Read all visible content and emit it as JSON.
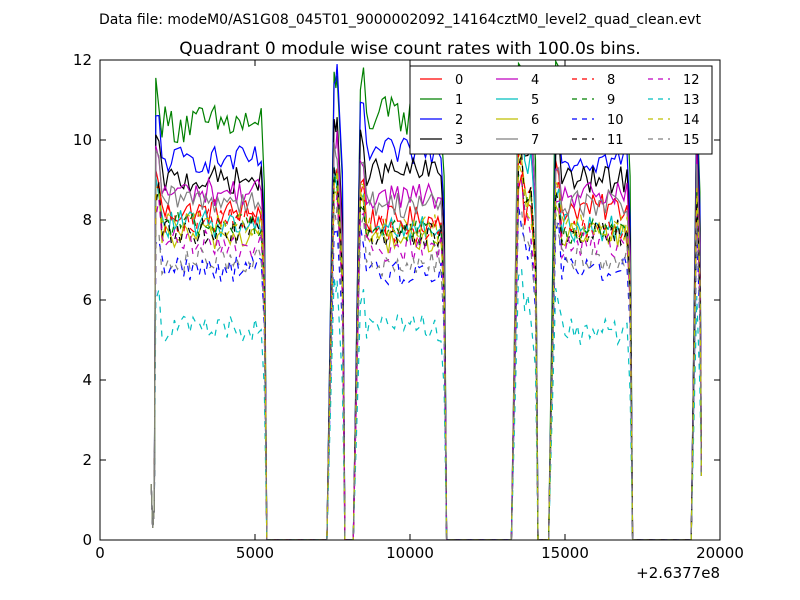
{
  "figure": {
    "suptitle": "Data file: modeM0/AS1G08_045T01_9000002092_14164cztM0_level2_quad_clean.evt"
  },
  "chart_data": {
    "type": "line",
    "title": "Quadrant 0 module wise count rates with 100.0s bins.",
    "xlabel": "",
    "ylabel": "",
    "x_offset_label": "+2.6377e8",
    "xlim": [
      0,
      20000
    ],
    "ylim": [
      0,
      12
    ],
    "x_ticks": [
      0,
      5000,
      10000,
      15000,
      20000
    ],
    "y_ticks": [
      0,
      2,
      4,
      6,
      8,
      10,
      12
    ],
    "grid": false,
    "legend_position": "top-right",
    "legend_columns": 4,
    "segments": [
      {
        "start": 1650,
        "end": 5300
      },
      {
        "start": 7400,
        "end": 7820
      },
      {
        "start": 8250,
        "end": 11100
      },
      {
        "start": 13350,
        "end": 14050
      },
      {
        "start": 14550,
        "end": 17100
      },
      {
        "start": 19150,
        "end": 19350
      }
    ],
    "series": [
      {
        "name": "0",
        "color": "#ff0000",
        "dash": "solid",
        "levels": [
          8.2,
          8.3,
          8.0,
          8.2,
          8.3,
          8.2
        ]
      },
      {
        "name": "1",
        "color": "#008000",
        "dash": "solid",
        "levels": [
          10.4,
          10.5,
          10.6,
          11.0,
          10.6,
          10.2
        ]
      },
      {
        "name": "2",
        "color": "#0000ff",
        "dash": "solid",
        "levels": [
          9.5,
          10.7,
          9.7,
          10.3,
          9.5,
          9.8
        ]
      },
      {
        "name": "3",
        "color": "#000000",
        "dash": "solid",
        "levels": [
          9.0,
          9.4,
          9.2,
          9.6,
          9.0,
          9.3
        ]
      },
      {
        "name": "4",
        "color": "#bf00bf",
        "dash": "solid",
        "levels": [
          8.7,
          9.0,
          8.6,
          9.8,
          8.6,
          8.9
        ]
      },
      {
        "name": "5",
        "color": "#00bfbf",
        "dash": "solid",
        "levels": [
          7.9,
          8.2,
          7.8,
          9.5,
          7.8,
          8.0
        ]
      },
      {
        "name": "6",
        "color": "#bfbf00",
        "dash": "solid",
        "levels": [
          7.6,
          7.9,
          7.5,
          8.5,
          7.6,
          7.8
        ]
      },
      {
        "name": "7",
        "color": "#808080",
        "dash": "solid",
        "levels": [
          8.5,
          8.8,
          8.4,
          10.3,
          8.4,
          8.6
        ]
      },
      {
        "name": "8",
        "color": "#ff0000",
        "dash": "dashed",
        "levels": [
          8.0,
          8.1,
          7.8,
          8.5,
          7.8,
          8.0
        ]
      },
      {
        "name": "9",
        "color": "#008000",
        "dash": "dashed",
        "levels": [
          7.9,
          8.0,
          7.7,
          8.3,
          7.7,
          7.9
        ]
      },
      {
        "name": "10",
        "color": "#0000ff",
        "dash": "dashed",
        "levels": [
          6.8,
          6.9,
          6.7,
          7.2,
          6.8,
          6.9
        ]
      },
      {
        "name": "11",
        "color": "#000000",
        "dash": "dashed",
        "levels": [
          7.7,
          8.2,
          7.6,
          8.5,
          7.7,
          7.8
        ]
      },
      {
        "name": "12",
        "color": "#bf00bf",
        "dash": "dashed",
        "levels": [
          7.4,
          7.6,
          7.3,
          7.9,
          7.4,
          7.5
        ]
      },
      {
        "name": "13",
        "color": "#00bfbf",
        "dash": "dashed",
        "levels": [
          5.3,
          5.4,
          5.3,
          5.8,
          5.2,
          5.3
        ]
      },
      {
        "name": "14",
        "color": "#bfbf00",
        "dash": "dashed",
        "levels": [
          7.9,
          8.1,
          7.8,
          8.3,
          7.8,
          8.0
        ]
      },
      {
        "name": "15",
        "color": "#808080",
        "dash": "dashed",
        "levels": [
          7.0,
          7.2,
          6.9,
          7.5,
          7.0,
          7.1
        ]
      }
    ]
  }
}
